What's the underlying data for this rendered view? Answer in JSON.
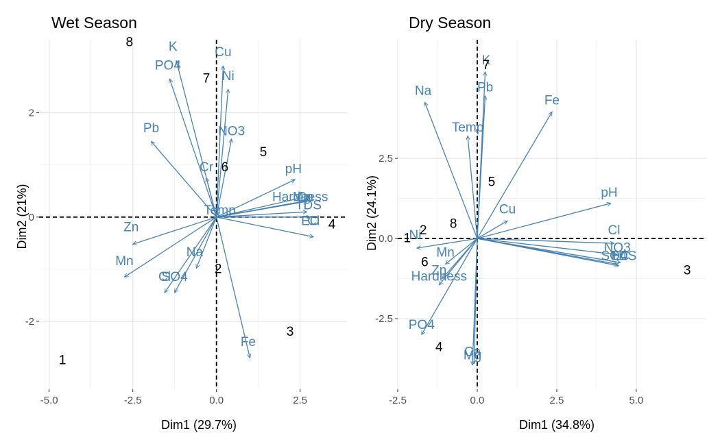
{
  "colors": {
    "arrow": "#4682b4",
    "grid_major": "#e6e6e6",
    "grid_minor": "#f2f2f2",
    "observation": "#000000",
    "text": "#000000",
    "tick": "#4d4d4d"
  },
  "chart_data": [
    {
      "type": "scatter",
      "subtype": "pca-biplot",
      "title": "Wet Season",
      "xlabel": "Dim1 (29.7%)",
      "ylabel": "Dim2 (21%)",
      "xlim": [
        -5.3,
        3.9
      ],
      "ylim": [
        -3.3,
        3.4
      ],
      "xticks": [
        -5.0,
        -2.5,
        0.0,
        2.5
      ],
      "xtick_labels": [
        "-5.0",
        "-2.5",
        "0.0",
        "2.5"
      ],
      "yticks": [
        -2,
        0,
        2
      ],
      "ytick_labels": [
        "-2",
        "0",
        "2"
      ],
      "grid": true,
      "reference_lines": {
        "x": 0,
        "y": 0,
        "style": "dashed"
      },
      "variables": [
        {
          "name": "K",
          "x": -1.2,
          "y": 3.0,
          "label_x": -1.3,
          "label_y": 3.26
        },
        {
          "name": "PO4",
          "x": -1.4,
          "y": 2.65,
          "label_x": -1.45,
          "label_y": 2.9
        },
        {
          "name": "Cu",
          "x": 0.2,
          "y": 2.9,
          "label_x": 0.2,
          "label_y": 3.16
        },
        {
          "name": "Ni",
          "x": 0.35,
          "y": 2.45,
          "label_x": 0.35,
          "label_y": 2.7
        },
        {
          "name": "NO3",
          "x": 0.45,
          "y": 1.5,
          "label_x": 0.45,
          "label_y": 1.64
        },
        {
          "name": "Pb",
          "x": -1.95,
          "y": 1.45,
          "label_x": -1.95,
          "label_y": 1.7
        },
        {
          "name": "Cr",
          "x": -0.3,
          "y": 0.75,
          "label_x": -0.3,
          "label_y": 0.95
        },
        {
          "name": "pH",
          "x": 2.35,
          "y": 0.72,
          "label_x": 2.3,
          "label_y": 0.92
        },
        {
          "name": "Hardness",
          "x": 2.75,
          "y": 0.4,
          "label_x": 2.5,
          "label_y": 0.38
        },
        {
          "name": "Mg",
          "x": 2.7,
          "y": 0.3,
          "label_x": 2.55,
          "label_y": 0.38
        },
        {
          "name": "Ca",
          "x": 2.75,
          "y": 0.32,
          "label_x": 2.65,
          "label_y": 0.38
        },
        {
          "name": "TDS",
          "x": 2.7,
          "y": 0.1,
          "label_x": 2.75,
          "label_y": 0.22
        },
        {
          "name": "EC",
          "x": 2.8,
          "y": 0.0,
          "label_x": 2.8,
          "label_y": -0.08
        },
        {
          "name": "Cl",
          "x": 2.9,
          "y": -0.38,
          "label_x": 2.9,
          "label_y": -0.08
        },
        {
          "name": "Temp",
          "x": 0.05,
          "y": 0.08,
          "label_x": 0.1,
          "label_y": 0.12
        },
        {
          "name": "Zn",
          "x": -2.5,
          "y": -0.52,
          "label_x": -2.55,
          "label_y": -0.2
        },
        {
          "name": "Mn",
          "x": -2.75,
          "y": -1.15,
          "label_x": -2.75,
          "label_y": -0.85
        },
        {
          "name": "Na",
          "x": -0.6,
          "y": -0.98,
          "label_x": -0.65,
          "label_y": -0.68
        },
        {
          "name": "Cl",
          "x": -1.55,
          "y": -1.45,
          "label_x": -1.55,
          "label_y": -1.15
        },
        {
          "name": "SO4",
          "x": -1.25,
          "y": -1.45,
          "label_x": -1.25,
          "label_y": -1.15
        },
        {
          "name": "Fe",
          "x": 1.0,
          "y": -2.7,
          "label_x": 0.95,
          "label_y": -2.4
        }
      ],
      "observations": [
        {
          "label": "1",
          "x": -4.6,
          "y": -2.75
        },
        {
          "label": "2",
          "x": 0.05,
          "y": -1.0
        },
        {
          "label": "3",
          "x": 2.2,
          "y": -2.2
        },
        {
          "label": "4",
          "x": 3.45,
          "y": -0.15
        },
        {
          "label": "5",
          "x": 1.4,
          "y": 1.24
        },
        {
          "label": "6",
          "x": 0.25,
          "y": 0.95
        },
        {
          "label": "7",
          "x": -0.3,
          "y": 2.65
        },
        {
          "label": "8",
          "x": -2.6,
          "y": 3.35
        }
      ]
    },
    {
      "type": "scatter",
      "subtype": "pca-biplot",
      "title": "Dry Season",
      "xlabel": "Dim1 (34.8%)",
      "ylabel": "Dim2 (24.1%)",
      "xlim": [
        -2.5,
        7.2
      ],
      "ylim": [
        -4.7,
        6.2
      ],
      "xticks": [
        -2.5,
        0.0,
        2.5,
        5.0
      ],
      "xtick_labels": [
        "-2.5",
        "0.0",
        "2.5",
        "5.0"
      ],
      "yticks": [
        -2.5,
        0.0,
        2.5
      ],
      "ytick_labels": [
        "-2.5",
        "0.0",
        "2.5"
      ],
      "grid": true,
      "reference_lines": {
        "x": 0,
        "y": 0,
        "style": "dashed"
      },
      "variables": [
        {
          "name": "K",
          "x": 0.25,
          "y": 5.2,
          "label_x": 0.28,
          "label_y": 5.55
        },
        {
          "name": "Pb",
          "x": 0.25,
          "y": 4.45,
          "label_x": 0.25,
          "label_y": 4.7
        },
        {
          "name": "Na",
          "x": -1.65,
          "y": 4.25,
          "label_x": -1.7,
          "label_y": 4.6
        },
        {
          "name": "Temp",
          "x": -0.3,
          "y": 3.2,
          "label_x": -0.3,
          "label_y": 3.45
        },
        {
          "name": "Fe",
          "x": 2.35,
          "y": 3.95,
          "label_x": 2.35,
          "label_y": 4.3
        },
        {
          "name": "Cu",
          "x": 0.95,
          "y": 0.55,
          "label_x": 0.95,
          "label_y": 0.9
        },
        {
          "name": "pH",
          "x": 4.2,
          "y": 1.1,
          "label_x": 4.15,
          "label_y": 1.42
        },
        {
          "name": "Cl",
          "x": 4.3,
          "y": -0.15,
          "label_x": 4.3,
          "label_y": 0.25
        },
        {
          "name": "NO3",
          "x": 4.4,
          "y": -0.5,
          "label_x": 4.4,
          "label_y": -0.3
        },
        {
          "name": "SO4",
          "x": 4.4,
          "y": -0.8,
          "label_x": 4.3,
          "label_y": -0.55
        },
        {
          "name": "TDS",
          "x": 4.5,
          "y": -0.75,
          "label_x": 4.6,
          "label_y": -0.55
        },
        {
          "name": "EC",
          "x": 4.45,
          "y": -0.85,
          "label_x": 4.5,
          "label_y": -0.55
        },
        {
          "name": "Ni",
          "x": -1.9,
          "y": -0.3,
          "label_x": -1.95,
          "label_y": 0.1
        },
        {
          "name": "Mn",
          "x": -1.0,
          "y": -0.8,
          "label_x": -1.0,
          "label_y": -0.45
        },
        {
          "name": "Hardness",
          "x": -1.2,
          "y": -1.45,
          "label_x": -1.2,
          "label_y": -1.2
        },
        {
          "name": "Zn",
          "x": -1.1,
          "y": -1.25,
          "label_x": -1.2,
          "label_y": -1.0
        },
        {
          "name": "PO4",
          "x": -1.75,
          "y": -3.0,
          "label_x": -1.75,
          "label_y": -2.7
        },
        {
          "name": "Ca",
          "x": -0.1,
          "y": -3.9,
          "label_x": -0.15,
          "label_y": -3.55
        },
        {
          "name": "Mg",
          "x": -0.15,
          "y": -3.95,
          "label_x": -0.15,
          "label_y": -3.65
        }
      ],
      "observations": [
        {
          "label": "1",
          "x": -2.2,
          "y": 0.0
        },
        {
          "label": "2",
          "x": -1.7,
          "y": 0.25
        },
        {
          "label": "3",
          "x": 6.6,
          "y": -1.0
        },
        {
          "label": "4",
          "x": -1.2,
          "y": -3.4
        },
        {
          "label": "5",
          "x": 0.45,
          "y": 1.75
        },
        {
          "label": "6",
          "x": -1.65,
          "y": -0.75
        },
        {
          "label": "7",
          "x": 0.28,
          "y": 5.4
        },
        {
          "label": "8",
          "x": -0.75,
          "y": 0.45
        }
      ]
    }
  ]
}
